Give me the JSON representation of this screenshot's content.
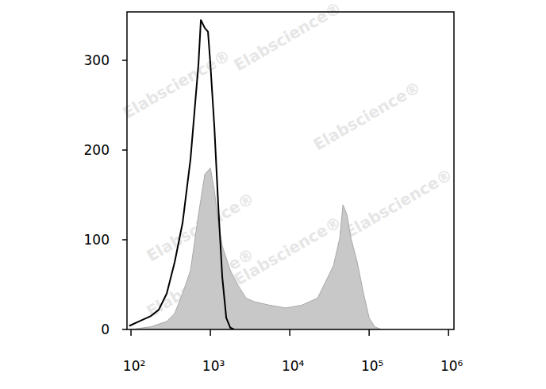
{
  "chart_data": {
    "type": "line",
    "log": "x",
    "grid": false,
    "watermark": "Elabscience®",
    "xlim": [
      89,
      1170000
    ],
    "ylim": [
      0,
      354
    ],
    "xticks": [
      {
        "value": 100,
        "label": "10²"
      },
      {
        "value": 1000,
        "label": "10³"
      },
      {
        "value": 10000,
        "label": "10⁴"
      },
      {
        "value": 100000,
        "label": "10⁵"
      },
      {
        "value": 1000000,
        "label": "10⁶"
      }
    ],
    "yticks": [
      0,
      100,
      200,
      300
    ],
    "series": [
      {
        "type": "area",
        "color": "#c8c8c8",
        "x": [
          100,
          178,
          282,
          355,
          447,
          562,
          708,
          851,
          1000,
          1122,
          1259,
          1413,
          1778,
          2239,
          2818,
          3548,
          5623,
          8913,
          14125,
          22387,
          28184,
          35481,
          42658,
          46774,
          52481,
          58884,
          70795,
          85114,
          100000,
          117490,
          141254
        ],
        "values": [
          0,
          3,
          9,
          18,
          40,
          66,
          128,
          173,
          180,
          155,
          119,
          93,
          66,
          49,
          35,
          31,
          27,
          24,
          27,
          35,
          53,
          71,
          102,
          139,
          128,
          102,
          75,
          40,
          13,
          3,
          0
        ]
      },
      {
        "type": "line",
        "color": "#000000",
        "x": [
          95,
          126,
          178,
          224,
          282,
          355,
          447,
          562,
          631,
          708,
          759,
          851,
          933,
          1000,
          1122,
          1259,
          1413,
          1585,
          1778,
          1995
        ],
        "values": [
          4,
          9,
          15,
          22,
          40,
          75,
          119,
          190,
          243,
          296,
          345,
          336,
          332,
          296,
          226,
          137,
          58,
          13,
          2,
          0
        ]
      }
    ]
  }
}
